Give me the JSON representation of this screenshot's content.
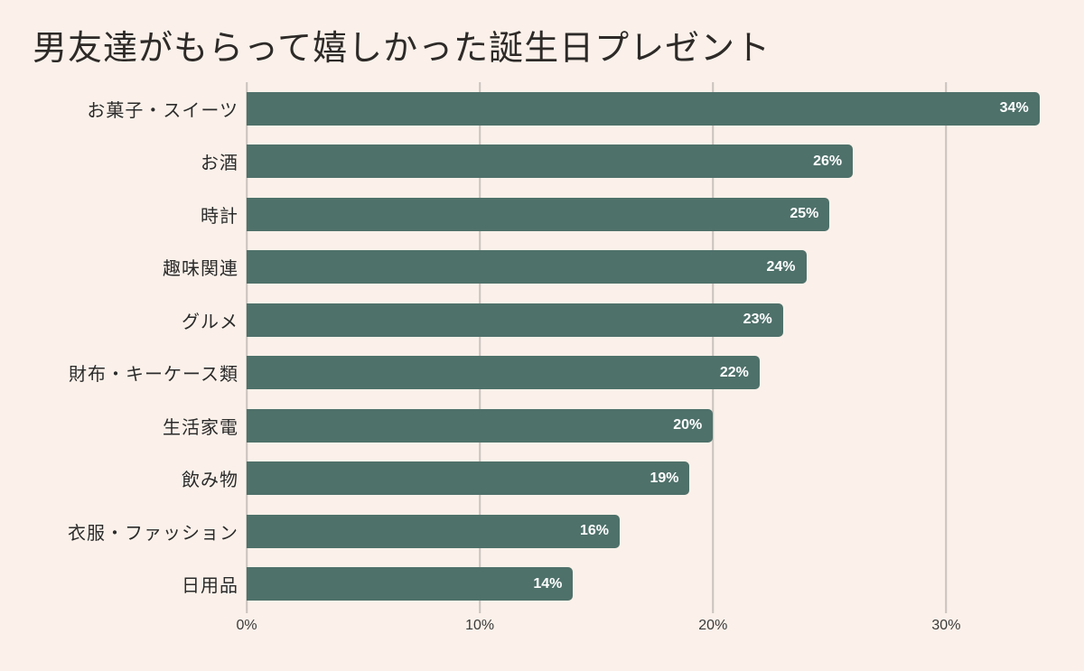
{
  "title": "男友達がもらって嬉しかった誕生日プレゼント",
  "colors": {
    "background": "#fbf1ea",
    "bar": "#4e716a",
    "gridline": "#c9c2bd",
    "category_label": "#2b2b2b",
    "value_label": "#ffffff",
    "axis_label": "#3a3a3a",
    "title": "#2d2a28"
  },
  "chart_data": {
    "type": "bar",
    "orientation": "horizontal",
    "title": "男友達がもらって嬉しかった誕生日プレゼント",
    "categories": [
      "お菓子・スイーツ",
      "お酒",
      "時計",
      "趣味関連",
      "グルメ",
      "財布・キーケース類",
      "生活家電",
      "飲み物",
      "衣服・ファッション",
      "日用品"
    ],
    "values": [
      34,
      26,
      25,
      24,
      23,
      22,
      20,
      19,
      16,
      14
    ],
    "value_labels": [
      "34%",
      "26%",
      "25%",
      "24%",
      "23%",
      "22%",
      "20%",
      "19%",
      "16%",
      "14%"
    ],
    "x_ticks": [
      {
        "value": 0,
        "label": "0%"
      },
      {
        "value": 10,
        "label": "10%"
      },
      {
        "value": 20,
        "label": "20%"
      },
      {
        "value": 30,
        "label": "30%"
      }
    ],
    "xlim": [
      0,
      34.4
    ],
    "xlabel": "",
    "ylabel": "",
    "grid": true,
    "legend": false,
    "value_label_position": "inside-end",
    "sorted": "descending"
  }
}
